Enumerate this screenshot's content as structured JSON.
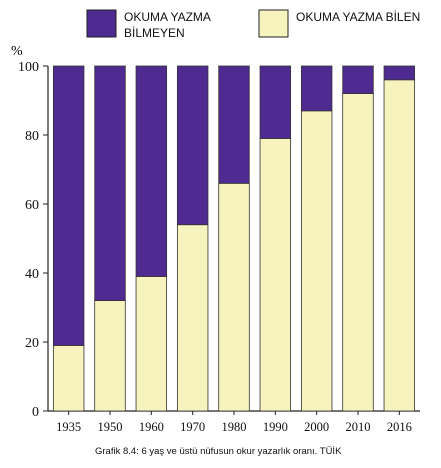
{
  "chart_data": {
    "type": "bar",
    "stacked": true,
    "categories": [
      "1935",
      "1950",
      "1960",
      "1970",
      "1980",
      "1990",
      "2000",
      "2010",
      "2016"
    ],
    "series": [
      {
        "name": "OKUMA YAZMA BİLEN",
        "values": [
          19,
          32,
          39,
          54,
          66,
          79,
          87,
          92,
          96
        ],
        "color": "#f7f3bf"
      },
      {
        "name": "OKUMA YAZMA BİLMEYEN",
        "values": [
          81,
          68,
          61,
          46,
          34,
          21,
          13,
          8,
          4
        ],
        "color": "#4f2b91"
      }
    ],
    "legend": [
      {
        "label_line1": "OKUMA YAZMA",
        "label_line2": "BİLMEYEN",
        "color": "#4f2b91"
      },
      {
        "label_line1": "OKUMA YAZMA BİLEN",
        "label_line2": "",
        "color": "#f7f3bf"
      }
    ],
    "ylabel": "%",
    "ylim": [
      0,
      100
    ],
    "yticks": [
      "0",
      "20",
      "40",
      "60",
      "80",
      "100"
    ],
    "legend_position": "top",
    "grid": false,
    "caption": "Grafik 8.4: 6 yaş ve üstü nüfusun okur yazarlık oranı. TÜİK"
  }
}
